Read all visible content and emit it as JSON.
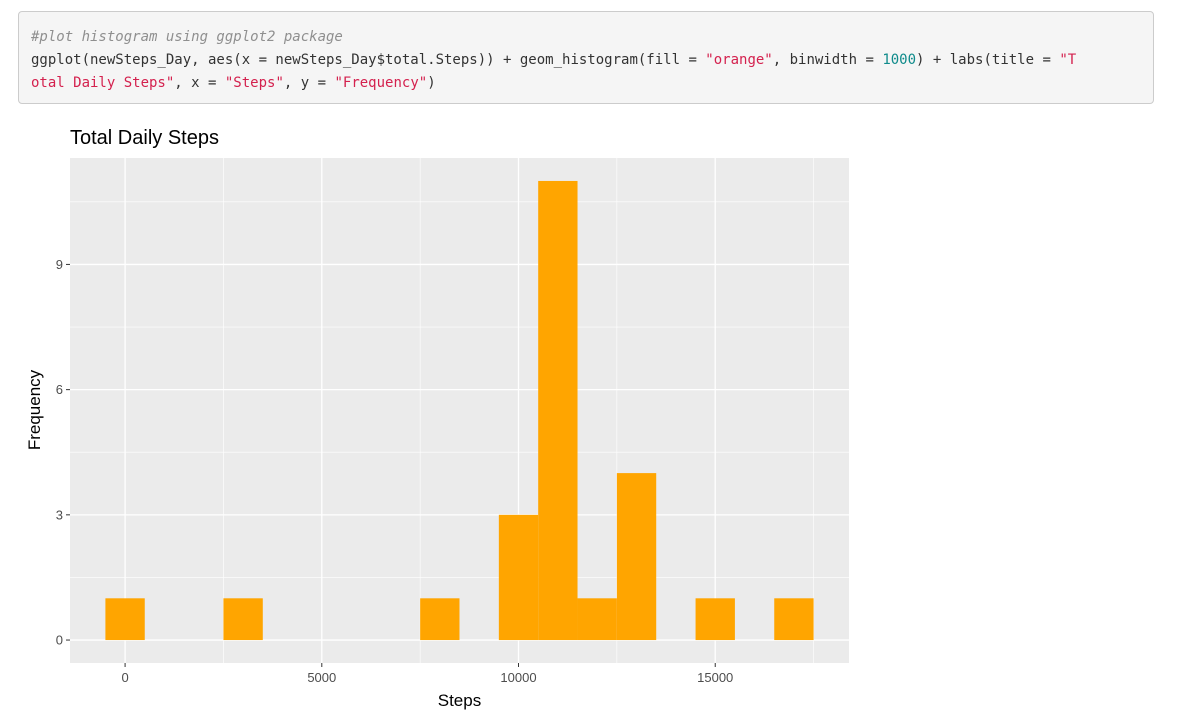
{
  "code": {
    "comment": "#plot histogram using ggplot2 package",
    "line1_a": "ggplot(newSteps_Day, aes(x = newSteps_Day$total.Steps)) + geom_histogram(fill = ",
    "line1_str1": "\"orange\"",
    "line1_b": ", binwidth = ",
    "line1_num": "1000",
    "line1_c": ") + labs(title = ",
    "line1_str2": "\"T",
    "line2_str2": "otal Daily Steps\"",
    "line2_a": ", x = ",
    "line2_str3": "\"Steps\"",
    "line2_b": ", y = ",
    "line2_str4": "\"Frequency\"",
    "line2_c": ")"
  },
  "chart_data": {
    "type": "bar",
    "title": "Total Daily Steps",
    "xlabel": "Steps",
    "ylabel": "Frequency",
    "bar_color": "#ffa500",
    "panel_color": "#ebebeb",
    "grid": true,
    "binwidth": 1000,
    "xlim": [
      -1400,
      18400
    ],
    "ylim": [
      -0.55,
      11.55
    ],
    "x_ticks": [
      0,
      5000,
      10000,
      15000
    ],
    "x_tick_labels": [
      "0",
      "5000",
      "10000",
      "15000"
    ],
    "y_ticks": [
      0,
      3,
      6,
      9
    ],
    "y_tick_labels": [
      "0",
      "3",
      "6",
      "9"
    ],
    "bins": [
      {
        "center": 0,
        "count": 1
      },
      {
        "center": 3000,
        "count": 1
      },
      {
        "center": 8000,
        "count": 1
      },
      {
        "center": 10000,
        "count": 3
      },
      {
        "center": 11000,
        "count": 11
      },
      {
        "center": 12000,
        "count": 1
      },
      {
        "center": 13000,
        "count": 4
      },
      {
        "center": 15000,
        "count": 1
      },
      {
        "center": 17000,
        "count": 1
      }
    ]
  }
}
